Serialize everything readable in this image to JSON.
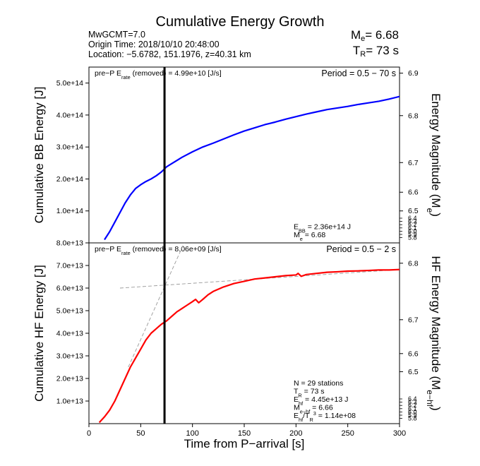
{
  "header": {
    "title": "Cumulative Energy Growth",
    "event": "MwGCMT=7.0",
    "origin_time": "Origin Time: 2018/10/10 20:48:00",
    "location": "Location: −5.6782, 151.1976, z=40.31 km",
    "me_symbol": "M",
    "me_sub": "e",
    "me_value": "= 6.68",
    "tr_symbol": "T",
    "tr_sub": "R",
    "tr_value": "= 73 s"
  },
  "x_axis": {
    "label": "Time from P−arrival [s]",
    "range": [
      0,
      300
    ],
    "ticks": [
      0,
      50,
      100,
      150,
      200,
      250,
      300
    ],
    "tick_labels": [
      "0",
      "50",
      "100",
      "150",
      "200",
      "250",
      "300"
    ]
  },
  "marker_line_t": 73,
  "panels": {
    "bb": {
      "y_label": "Cumulative BB Energy [J]",
      "y_range": [
        0,
        550000000000000.0
      ],
      "y_ticks": [
        100000000000000.0,
        200000000000000.0,
        300000000000000.0,
        400000000000000.0,
        500000000000000.0
      ],
      "y_tick_labels": [
        "1.0e+14",
        "2.0e+14",
        "3.0e+14",
        "4.0e+14",
        "5.0e+14"
      ],
      "right_label": "Energy Magnitude (M",
      "right_label_sub": "e",
      "right_label_end": ")",
      "right_ticks": [
        {
          "value": 6.5,
          "label": "6.5",
          "y": 100000000000000.0
        },
        {
          "value": 6.6,
          "label": "6.6",
          "y": 158500000000000.0
        },
        {
          "value": 6.7,
          "label": "6.7",
          "y": 251200000000000.0
        },
        {
          "value": 6.8,
          "label": "6.8",
          "y": 398100000000000.0
        },
        {
          "value": 6.9,
          "label": "6.9",
          "y": 531000000000000.0
        }
      ],
      "right_small_labels": [
        "6.4",
        "6.3",
        "6.2",
        "6.1",
        "6.0",
        "5.9",
        "5.8"
      ],
      "annotation_left_pre": "pre−P E",
      "annotation_left_sub": "rate",
      "annotation_left_post": " (removed) = 4.99e+10 [J/s]",
      "period": "Period = 0.5 − 70 s",
      "stats": [
        {
          "main": "E",
          "sub": "BB",
          "rest": " = 2.36e+14 J"
        },
        {
          "main": "M",
          "sub": "e",
          "rest": " = 6.68"
        }
      ]
    },
    "hf": {
      "y_label": "Cumulative HF Energy [J]",
      "y_range": [
        0,
        80000000000000.0
      ],
      "y_ticks": [
        10000000000000.0,
        20000000000000.0,
        30000000000000.0,
        40000000000000.0,
        50000000000000.0,
        60000000000000.0,
        70000000000000.0,
        80000000000000.0
      ],
      "y_tick_labels": [
        "1.0e+13",
        "2.0e+13",
        "3.0e+13",
        "4.0e+13",
        "5.0e+13",
        "6.0e+13",
        "7.0e+13",
        "8.0e+13"
      ],
      "right_label": "HF Energy Magnitude (M",
      "right_label_sub": "e−hf",
      "right_label_end": ")",
      "right_ticks": [
        {
          "value": 6.5,
          "label": "6.5",
          "y": 23000000000000.0
        },
        {
          "value": 6.6,
          "label": "6.6",
          "y": 31000000000000.0
        },
        {
          "value": 6.7,
          "label": "6.7",
          "y": 46000000000000.0
        },
        {
          "value": 6.8,
          "label": "6.8",
          "y": 71000000000000.0
        }
      ],
      "right_small_labels": [
        "6.4",
        "6.3",
        "6.2",
        "6.1",
        "6.0",
        "5.9",
        "5.8"
      ],
      "annotation_left_pre": "pre−P E",
      "annotation_left_sub": "rate",
      "annotation_left_post": " (removed) = 8.06e+09 [J/s]",
      "period": "Period = 0.5 − 2 s",
      "stats": [
        {
          "main": "N = 29 stations",
          "sub": "",
          "rest": ""
        },
        {
          "main": "T",
          "sub": "R",
          "rest": " = 73  s"
        },
        {
          "main": "E",
          "sub": "hf",
          "rest": " = 4.45e+13 J"
        },
        {
          "main": "M",
          "sub": "e−hf",
          "rest": " = 6.66"
        },
        {
          "main": "E",
          "sub": "hf",
          "rest": "/T",
          "sub2": "R",
          "sup": "3",
          "rest2": " =  1.14e+08"
        }
      ]
    }
  },
  "chart_data": [
    {
      "type": "line",
      "xlabel": "Time from P−arrival [s]",
      "ylabel": "Cumulative BB Energy [J]",
      "xlim": [
        0,
        300
      ],
      "ylim": [
        0,
        550000000000000.0
      ],
      "color": "#0000ff",
      "series": [
        {
          "x": [
            15,
            20,
            25,
            30,
            35,
            40,
            45,
            50,
            55,
            60,
            65,
            70,
            75,
            80,
            90,
            100,
            110,
            120,
            130,
            140,
            150,
            160,
            170,
            180,
            190,
            200,
            210,
            220,
            230,
            240,
            250,
            260,
            270,
            280,
            290,
            300
          ],
          "y": [
            10000000000000.0,
            35000000000000.0,
            65000000000000.0,
            95000000000000.0,
            125000000000000.0,
            150000000000000.0,
            170000000000000.0,
            182000000000000.0,
            192000000000000.0,
            200000000000000.0,
            210000000000000.0,
            222000000000000.0,
            238000000000000.0,
            248000000000000.0,
            268000000000000.0,
            285000000000000.0,
            300000000000000.0,
            312000000000000.0,
            325000000000000.0,
            338000000000000.0,
            350000000000000.0,
            360000000000000.0,
            370000000000000.0,
            378000000000000.0,
            387000000000000.0,
            395000000000000.0,
            403000000000000.0,
            410000000000000.0,
            417000000000000.0,
            422000000000000.0,
            427000000000000.0,
            433000000000000.0,
            438000000000000.0,
            443000000000000.0,
            450000000000000.0,
            458000000000000.0
          ]
        }
      ]
    },
    {
      "type": "line",
      "xlabel": "Time from P−arrival [s]",
      "ylabel": "Cumulative HF Energy [J]",
      "xlim": [
        0,
        300
      ],
      "ylim": [
        0,
        80000000000000.0
      ],
      "color": "#ff0000",
      "series": [
        {
          "x": [
            10,
            15,
            20,
            25,
            30,
            35,
            40,
            45,
            50,
            55,
            60,
            65,
            70,
            75,
            80,
            85,
            90,
            95,
            100,
            103,
            106,
            110,
            115,
            120,
            130,
            140,
            150,
            160,
            170,
            180,
            190,
            200,
            202,
            205,
            210,
            220,
            230,
            240,
            250,
            260,
            270,
            280,
            290,
            300
          ],
          "y": [
            500000000000.0,
            3000000000000.0,
            6000000000000.0,
            10000000000000.0,
            15000000000000.0,
            20000000000000.0,
            25000000000000.0,
            29000000000000.0,
            33000000000000.0,
            37000000000000.0,
            40000000000000.0,
            42000000000000.0,
            44000000000000.0,
            45500000000000.0,
            47500000000000.0,
            49500000000000.0,
            51000000000000.0,
            52500000000000.0,
            54000000000000.0,
            55000000000000.0,
            53500000000000.0,
            55000000000000.0,
            57000000000000.0,
            58500000000000.0,
            60500000000000.0,
            62000000000000.0,
            63000000000000.0,
            64000000000000.0,
            64500000000000.0,
            65000000000000.0,
            65500000000000.0,
            65800000000000.0,
            66500000000000.0,
            65200000000000.0,
            66000000000000.0,
            66500000000000.0,
            67000000000000.0,
            67200000000000.0,
            67500000000000.0,
            67600000000000.0,
            67800000000000.0,
            68000000000000.0,
            68000000000000.0,
            68200000000000.0
          ]
        }
      ]
    }
  ]
}
